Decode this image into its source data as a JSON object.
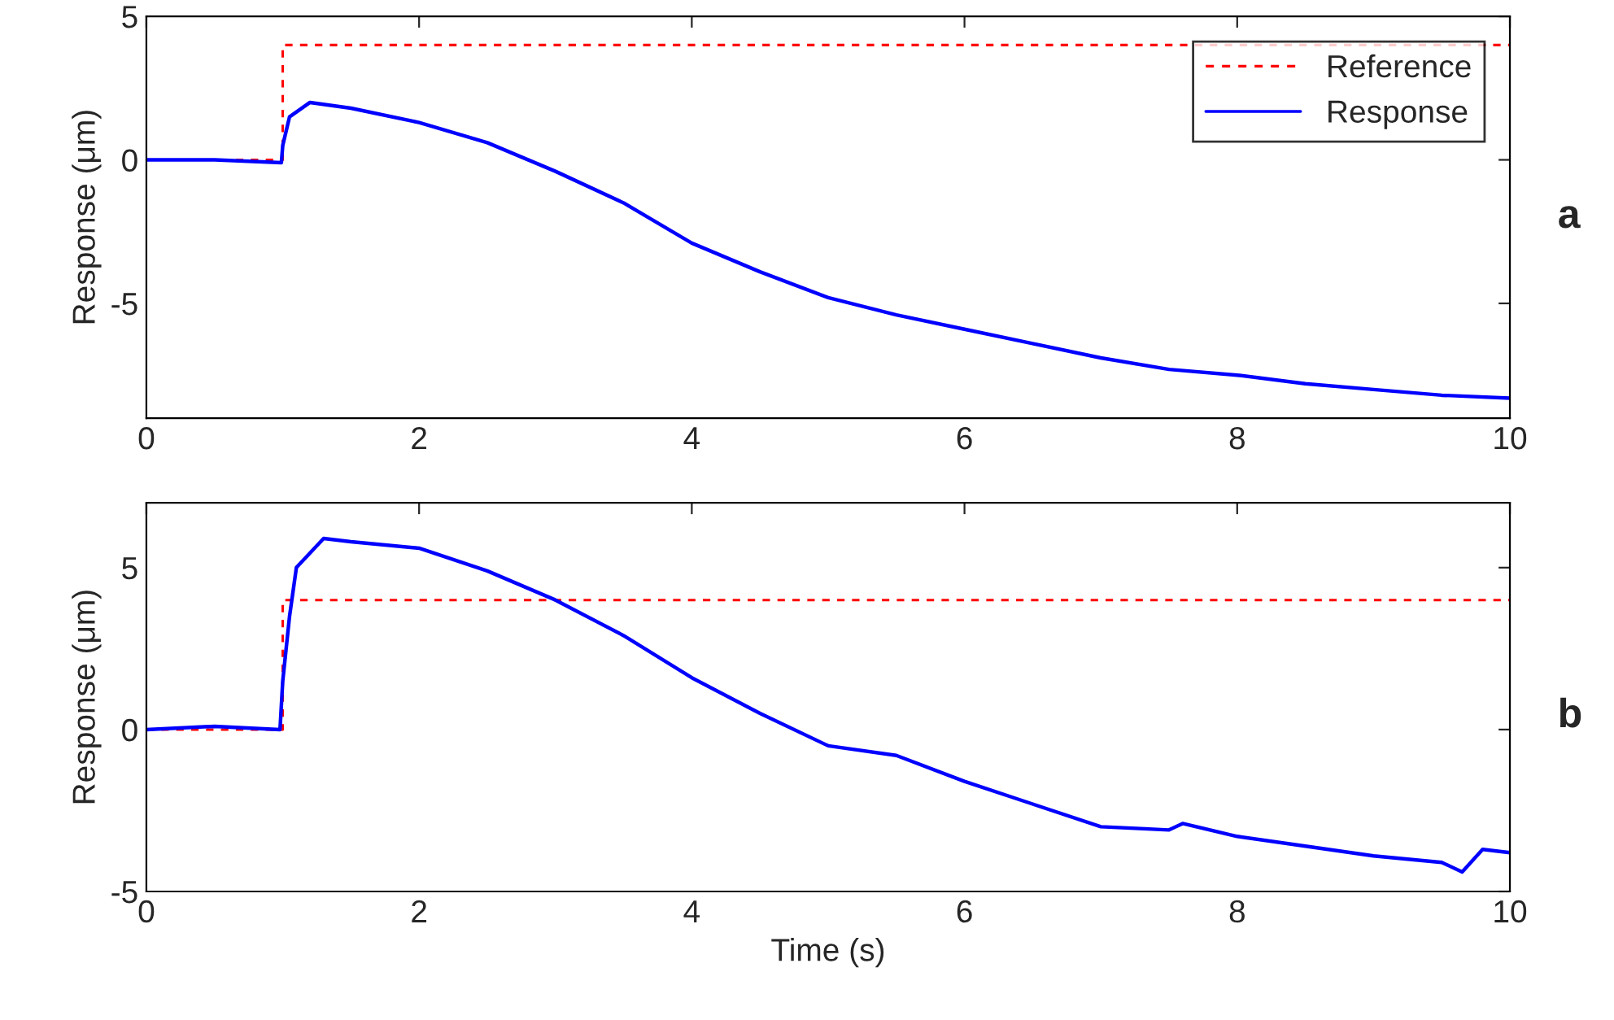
{
  "chart_data": [
    {
      "type": "line",
      "ylabel": "Response (μm)",
      "annotations": [
        "a"
      ],
      "xlim": [
        0,
        10
      ],
      "xticks": [
        0,
        2,
        4,
        6,
        8,
        10
      ],
      "ylim": [
        -9,
        5
      ],
      "yticks": [
        -5,
        0,
        5
      ],
      "grid": false,
      "legend": "top right",
      "series": [
        {
          "name": "Reference",
          "color": "#ff0000",
          "line_style": "dashed",
          "x": [
            0,
            1,
            1,
            10
          ],
          "values": [
            0,
            0,
            4,
            4
          ]
        },
        {
          "name": "Response",
          "color": "#0000ff",
          "line_style": "solid",
          "x": [
            0,
            0.5,
            0.99,
            1.0,
            1.05,
            1.2,
            1.5,
            2.0,
            2.5,
            3.0,
            3.5,
            4.0,
            4.5,
            5.0,
            5.5,
            6.0,
            6.5,
            7.0,
            7.5,
            8.0,
            8.5,
            9.0,
            9.5,
            10.0
          ],
          "values": [
            0,
            0,
            -0.1,
            0.5,
            1.5,
            2.0,
            1.8,
            1.3,
            0.6,
            -0.4,
            -1.5,
            -2.9,
            -3.9,
            -4.8,
            -5.4,
            -5.9,
            -6.4,
            -6.9,
            -7.3,
            -7.5,
            -7.8,
            -8.0,
            -8.2,
            -8.3
          ]
        }
      ]
    },
    {
      "type": "line",
      "xlabel": "Time (s)",
      "ylabel": "Response (μm)",
      "annotations": [
        "b"
      ],
      "xlim": [
        0,
        10
      ],
      "xticks": [
        0,
        2,
        4,
        6,
        8,
        10
      ],
      "ylim": [
        -5,
        7
      ],
      "yticks": [
        -5,
        0,
        5
      ],
      "grid": false,
      "legend": false,
      "series": [
        {
          "color": "#ff0000",
          "line_style": "dashed",
          "x": [
            0,
            1,
            1,
            10
          ],
          "values": [
            0,
            0,
            4,
            4
          ]
        },
        {
          "color": "#0000ff",
          "line_style": "solid",
          "x": [
            0,
            0.5,
            0.98,
            1.0,
            1.05,
            1.1,
            1.3,
            1.5,
            2.0,
            2.5,
            3.0,
            3.5,
            4.0,
            4.5,
            5.0,
            5.5,
            6.0,
            6.5,
            7.0,
            7.5,
            7.6,
            8.0,
            8.5,
            9.0,
            9.5,
            9.65,
            9.8,
            10.0
          ],
          "values": [
            0,
            0.1,
            0,
            1.5,
            3.5,
            5.0,
            5.9,
            5.8,
            5.6,
            4.9,
            4.0,
            2.9,
            1.6,
            0.5,
            -0.5,
            -0.8,
            -1.6,
            -2.3,
            -3.0,
            -3.1,
            -2.9,
            -3.3,
            -3.6,
            -3.9,
            -4.1,
            -4.4,
            -3.7,
            -3.8
          ]
        }
      ]
    }
  ]
}
